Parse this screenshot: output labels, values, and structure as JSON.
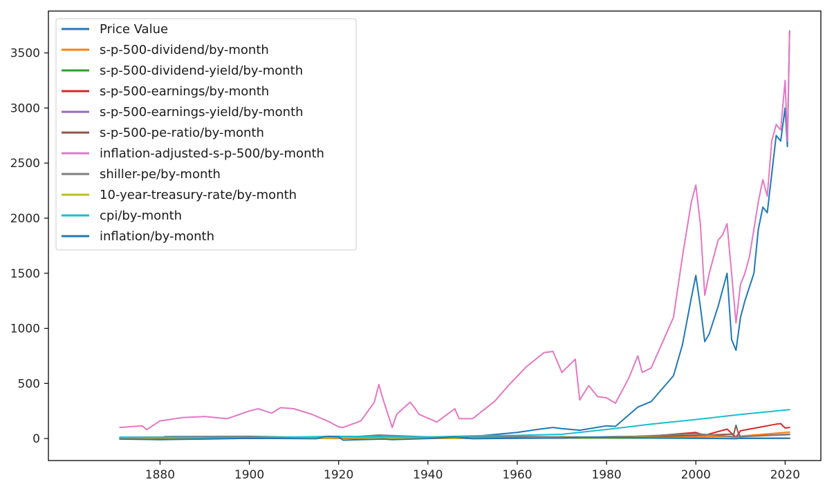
{
  "chart_data": {
    "type": "line",
    "title": "",
    "xlabel": "",
    "ylabel": "",
    "xlim": [
      1855,
      2028
    ],
    "ylim": [
      -200,
      3880
    ],
    "xticks": [
      1880,
      1900,
      1920,
      1940,
      1960,
      1980,
      2000,
      2020
    ],
    "yticks": [
      0,
      500,
      1000,
      1500,
      2000,
      2500,
      3000,
      3500
    ],
    "grid": false,
    "legend_position": "upper-left",
    "series": [
      {
        "name": "Price Value",
        "color": "#1f77b4",
        "x": [
          1871,
          1880,
          1890,
          1900,
          1910,
          1920,
          1929,
          1932,
          1937,
          1940,
          1950,
          1955,
          1960,
          1965,
          1968,
          1970,
          1974,
          1980,
          1982,
          1987,
          1990,
          1995,
          1997,
          1999,
          2000,
          2001,
          2002,
          2003,
          2005,
          2007,
          2008,
          2009,
          2010,
          2011,
          2013,
          2014,
          2015,
          2016,
          2018,
          2019,
          2020,
          2020.5,
          2021
        ],
        "y": [
          4,
          6,
          5,
          7,
          9,
          8,
          22,
          5,
          15,
          11,
          18,
          37,
          55,
          85,
          100,
          90,
          75,
          115,
          110,
          285,
          335,
          570,
          850,
          1280,
          1480,
          1200,
          880,
          950,
          1200,
          1500,
          900,
          800,
          1100,
          1250,
          1500,
          1900,
          2100,
          2050,
          2750,
          2700,
          3000,
          2650,
          3700
        ]
      },
      {
        "name": "s-p-500-dividend/by-month",
        "color": "#ff7f0e",
        "x": [
          1871,
          1900,
          1930,
          1950,
          1970,
          1990,
          2000,
          2010,
          2021
        ],
        "y": [
          0.3,
          0.4,
          1,
          1.5,
          3,
          12,
          16,
          22,
          58
        ]
      },
      {
        "name": "s-p-500-dividend-yield/by-month",
        "color": "#2ca02c",
        "x": [
          1871,
          1900,
          1920,
          1932,
          1950,
          1970,
          1990,
          2000,
          2021
        ],
        "y": [
          5,
          4,
          6,
          12,
          7,
          3.5,
          3.5,
          1.2,
          1.6
        ]
      },
      {
        "name": "s-p-500-earnings/by-month",
        "color": "#d62728",
        "x": [
          1871,
          1900,
          1916,
          1920,
          1930,
          1950,
          1970,
          1980,
          1990,
          2000,
          2002,
          2007,
          2009,
          2010,
          2014,
          2018,
          2019,
          2020,
          2021
        ],
        "y": [
          0.4,
          1,
          6,
          2,
          1,
          2,
          5,
          15,
          22,
          55,
          30,
          85,
          10,
          70,
          100,
          130,
          135,
          95,
          100
        ]
      },
      {
        "name": "s-p-500-earnings-yield/by-month",
        "color": "#9467bd",
        "x": [
          1871,
          1900,
          1920,
          1932,
          1950,
          1970,
          1980,
          2000,
          2009,
          2021
        ],
        "y": [
          9,
          7,
          15,
          3,
          12,
          6,
          12,
          3,
          1,
          2.5
        ]
      },
      {
        "name": "s-p-500-pe-ratio/by-month",
        "color": "#8c564b",
        "x": [
          1871,
          1900,
          1920,
          1929,
          1940,
          1950,
          1970,
          1980,
          2000,
          2008.5,
          2009,
          2009.5,
          2010,
          2021
        ],
        "y": [
          11,
          13,
          6,
          19,
          14,
          7,
          16,
          8,
          29,
          40,
          120,
          50,
          17,
          40
        ]
      },
      {
        "name": "inflation-adjusted-s-p-500/by-month",
        "color": "#e377c2",
        "x": [
          1871,
          1876,
          1877,
          1880,
          1885,
          1890,
          1895,
          1900,
          1902,
          1905,
          1907,
          1910,
          1914,
          1918,
          1920,
          1921,
          1925,
          1928,
          1929,
          1930,
          1932,
          1933,
          1936,
          1937,
          1938,
          1942,
          1946,
          1947,
          1950,
          1955,
          1958,
          1962,
          1966,
          1968,
          1970,
          1973,
          1974,
          1976,
          1978,
          1980,
          1982,
          1985,
          1987,
          1988,
          1990,
          1995,
          1997,
          1999,
          2000,
          2001,
          2002,
          2003,
          2005,
          2006,
          2007,
          2008,
          2009,
          2010,
          2011,
          2012,
          2013,
          2014,
          2015,
          2016,
          2017,
          2018,
          2019,
          2020,
          2020.5,
          2021
        ],
        "y": [
          100,
          115,
          80,
          160,
          190,
          200,
          180,
          250,
          270,
          230,
          280,
          270,
          220,
          150,
          105,
          100,
          160,
          330,
          490,
          350,
          100,
          220,
          330,
          280,
          220,
          150,
          270,
          180,
          180,
          340,
          480,
          650,
          780,
          790,
          600,
          720,
          350,
          480,
          380,
          370,
          320,
          550,
          750,
          600,
          640,
          1100,
          1650,
          2150,
          2300,
          1950,
          1300,
          1500,
          1800,
          1850,
          1950,
          1500,
          1050,
          1400,
          1500,
          1650,
          1900,
          2150,
          2350,
          2200,
          2700,
          2850,
          2800,
          3250,
          2700,
          3700
        ]
      },
      {
        "name": "shiller-pe/by-month",
        "color": "#7f7f7f",
        "x": [
          1881,
          1900,
          1920,
          1929,
          1940,
          1960,
          1980,
          2000,
          2009,
          2021
        ],
        "y": [
          18,
          20,
          6,
          32,
          15,
          20,
          8,
          44,
          15,
          35
        ]
      },
      {
        "name": "10-year-treasury-rate/by-month",
        "color": "#bcbd22",
        "x": [
          1871,
          1900,
          1920,
          1940,
          1960,
          1981,
          2000,
          2021
        ],
        "y": [
          5.3,
          3.2,
          5,
          2.3,
          4,
          14,
          6,
          1.5
        ]
      },
      {
        "name": "cpi/by-month",
        "color": "#17becf",
        "x": [
          1871,
          1900,
          1920,
          1940,
          1950,
          1960,
          1970,
          1980,
          1990,
          2000,
          2010,
          2021
        ],
        "y": [
          12,
          8,
          20,
          14,
          24,
          29,
          38,
          82,
          130,
          172,
          218,
          262
        ]
      },
      {
        "name": "inflation/by-month",
        "color": "#1f77b4",
        "x": [
          1871,
          1880,
          1890,
          1900,
          1915,
          1917,
          1918,
          1920,
          1921,
          1930,
          1932,
          1940,
          1946,
          1947,
          1950,
          1960,
          1970,
          1974,
          1980,
          1990,
          2000,
          2009,
          2010,
          2021
        ],
        "y": [
          -5,
          -10,
          -5,
          2,
          -2,
          18,
          20,
          15,
          -15,
          -5,
          -10,
          0,
          15,
          10,
          -2,
          2,
          5,
          12,
          14,
          5,
          3,
          -2,
          2,
          3
        ]
      }
    ]
  }
}
